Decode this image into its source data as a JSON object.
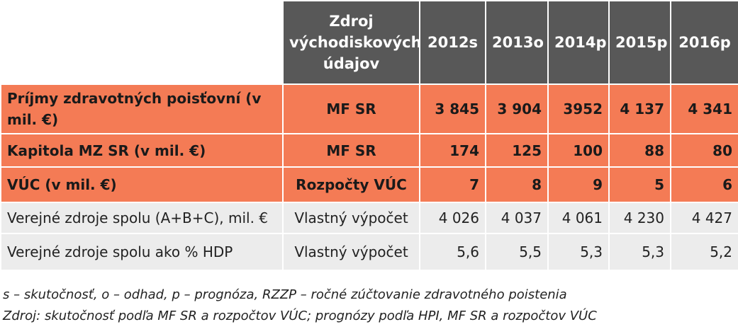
{
  "table": {
    "header": {
      "source_col": "Zdroj východiskových údajov",
      "years": [
        "2012s",
        "2013o",
        "2014p",
        "2015p",
        "2016p"
      ]
    },
    "rows": [
      {
        "label": "Príjmy zdravotných poisťovní (v mil. €)",
        "source": "MF SR",
        "values": [
          "3 845",
          "3 904",
          "3952",
          "4 137",
          "4 341"
        ]
      },
      {
        "label": "Kapitola MZ SR (v mil. €)",
        "source": "MF SR",
        "values": [
          "174",
          "125",
          "100",
          "88",
          "80"
        ]
      },
      {
        "label": "VÚC (v mil. €)",
        "source": "Rozpočty VÚC",
        "values": [
          "7",
          "8",
          "9",
          "5",
          "6"
        ]
      },
      {
        "label": "Verejné zdroje spolu (A+B+C), mil. €",
        "source": "Vlastný výpočet",
        "values": [
          "4 026",
          "4 037",
          "4 061",
          "4 230",
          "4 427"
        ]
      },
      {
        "label": "Verejné zdroje spolu ako % HDP",
        "source": "Vlastný výpočet",
        "values": [
          "5,6",
          "5,5",
          "5,3",
          "5,3",
          "5,2"
        ]
      }
    ]
  },
  "notes": {
    "legend": "s – skutočnosť, o – odhad, p – prognóza, RZZP – ročné zúčtovanie zdravotného poistenia",
    "source": "Zdroj: skutočnosť podľa MF SR a rozpočtov VÚC; prognózy podľa HPI, MF SR a rozpočtov VÚC"
  }
}
